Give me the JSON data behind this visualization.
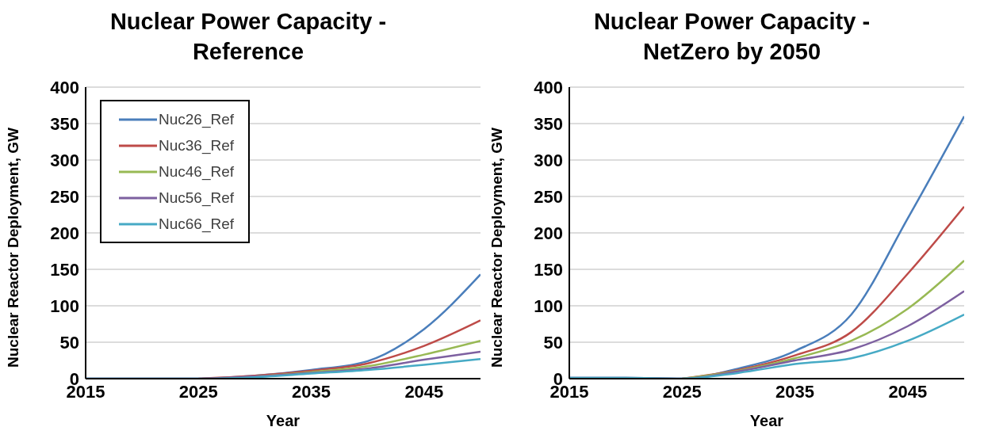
{
  "chart_data": [
    {
      "type": "line",
      "title": "Nuclear Power Capacity - Reference",
      "xlabel": "Year",
      "ylabel": "Nuclear Reactor Deployment, GW",
      "x": [
        2015,
        2020,
        2025,
        2030,
        2035,
        2040,
        2045,
        2050
      ],
      "xlim": [
        2015,
        2050
      ],
      "xticks": [
        2015,
        2025,
        2035,
        2045
      ],
      "ylim": [
        0,
        400
      ],
      "yticks": [
        0,
        50,
        100,
        150,
        200,
        250,
        300,
        350,
        400
      ],
      "grid": "y",
      "legend": "top left",
      "marker": "none",
      "line_style": "solid",
      "series": [
        {
          "name": "Nuc26_Ref",
          "color": "#4a7ebb",
          "values": [
            0,
            0,
            0,
            4,
            12,
            24,
            68,
            143
          ]
        },
        {
          "name": "Nuc36_Ref",
          "color": "#be4b48",
          "values": [
            null,
            null,
            0,
            4,
            11,
            21,
            45,
            80
          ]
        },
        {
          "name": "Nuc46_Ref",
          "color": "#98b954",
          "values": [
            null,
            null,
            null,
            3,
            9,
            17,
            33,
            52
          ]
        },
        {
          "name": "Nuc56_Ref",
          "color": "#7d60a0",
          "values": [
            0,
            0,
            0,
            3,
            8,
            14,
            26,
            37
          ]
        },
        {
          "name": "Nuc66_Ref",
          "color": "#46aac5",
          "values": [
            0,
            0,
            0,
            2,
            7,
            12,
            19,
            27
          ]
        }
      ]
    },
    {
      "type": "line",
      "title": "Nuclear Power Capacity - NetZero by 2050",
      "xlabel": "Year",
      "ylabel": "Nuclear Reactor Deployment, GW",
      "x": [
        2015,
        2020,
        2025,
        2030,
        2035,
        2040,
        2045,
        2050
      ],
      "xlim": [
        2015,
        2050
      ],
      "xticks": [
        2015,
        2025,
        2035,
        2045
      ],
      "ylim": [
        0,
        400
      ],
      "yticks": [
        0,
        50,
        100,
        150,
        200,
        250,
        300,
        350,
        400
      ],
      "grid": "y",
      "marker": "none",
      "line_style": "solid",
      "series": [
        {
          "color": "#4a7ebb",
          "values": [
            1,
            1,
            0,
            14,
            38,
            88,
            220,
            360
          ]
        },
        {
          "color": "#be4b48",
          "values": [
            null,
            null,
            0,
            12,
            32,
            64,
            144,
            236
          ]
        },
        {
          "color": "#98b954",
          "values": [
            null,
            null,
            0,
            11,
            28,
            52,
            96,
            162
          ]
        },
        {
          "color": "#7d60a0",
          "values": [
            1,
            1,
            0,
            10,
            25,
            40,
            72,
            120
          ]
        },
        {
          "color": "#46aac5",
          "values": [
            1,
            1,
            0,
            8,
            20,
            28,
            52,
            88
          ]
        }
      ]
    }
  ]
}
